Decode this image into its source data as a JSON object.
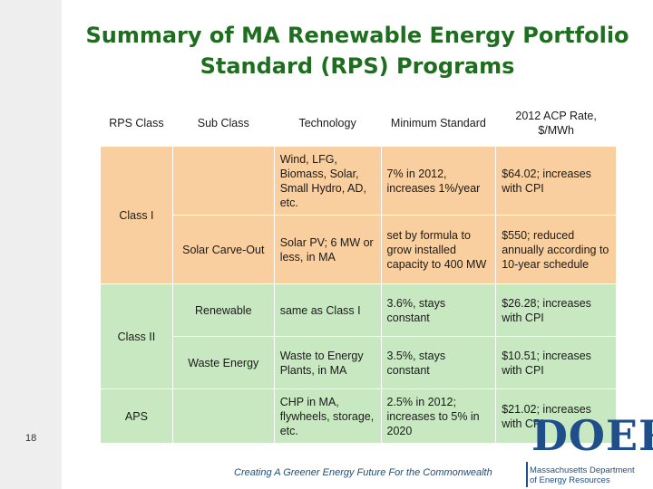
{
  "title": {
    "line1": "Summary of MA Renewable Energy Portfolio",
    "line2": "Standard (RPS) Programs"
  },
  "table": {
    "headers": {
      "rps_class": "RPS Class",
      "sub_class": "Sub Class",
      "technology": "Technology",
      "minimum_standard": "Minimum Standard",
      "acp_rate": "2012 ACP Rate, $/MWh"
    },
    "class_i": {
      "label": "Class I",
      "rows": [
        {
          "sub_class": "",
          "technology": "Wind, LFG, Biomass, Solar, Small Hydro, AD, etc.",
          "minimum_standard": "7% in 2012, increases 1%/year",
          "acp_rate": "$64.02; increases with CPI"
        },
        {
          "sub_class": "Solar Carve-Out",
          "technology": "Solar PV; 6 MW or less, in MA",
          "minimum_standard": "set by formula to grow installed capacity to 400 MW",
          "acp_rate": "$550; reduced annually according to 10-year schedule"
        }
      ]
    },
    "class_ii": {
      "label": "Class II",
      "rows": [
        {
          "sub_class": "Renewable",
          "technology": "same as Class I",
          "minimum_standard": "3.6%, stays constant",
          "acp_rate": "$26.28; increases with CPI"
        },
        {
          "sub_class": "Waste Energy",
          "technology": "Waste to Energy Plants, in MA",
          "minimum_standard": "3.5%, stays constant",
          "acp_rate": "$10.51; increases with CPI"
        }
      ]
    },
    "aps": {
      "label": "APS",
      "rows": [
        {
          "sub_class": "",
          "technology": "CHP in MA, flywheels, storage, etc.",
          "minimum_standard": "2.5% in 2012; increases to 5% in 2020",
          "acp_rate": "$21.02; increases with CPI"
        }
      ]
    }
  },
  "footer": {
    "slide_number": "18",
    "tagline": "Creating A Greener Energy Future For the Commonwealth"
  },
  "logo": {
    "mark": "DOER",
    "line1": "Massachusetts Department",
    "line2": "of Energy Resources"
  },
  "colors": {
    "title": "#1f6d1f",
    "class_i_fill": "#f9cf9f",
    "class_ii_fill": "#c7e8c0",
    "logo_blue": "#1f4e8a"
  }
}
